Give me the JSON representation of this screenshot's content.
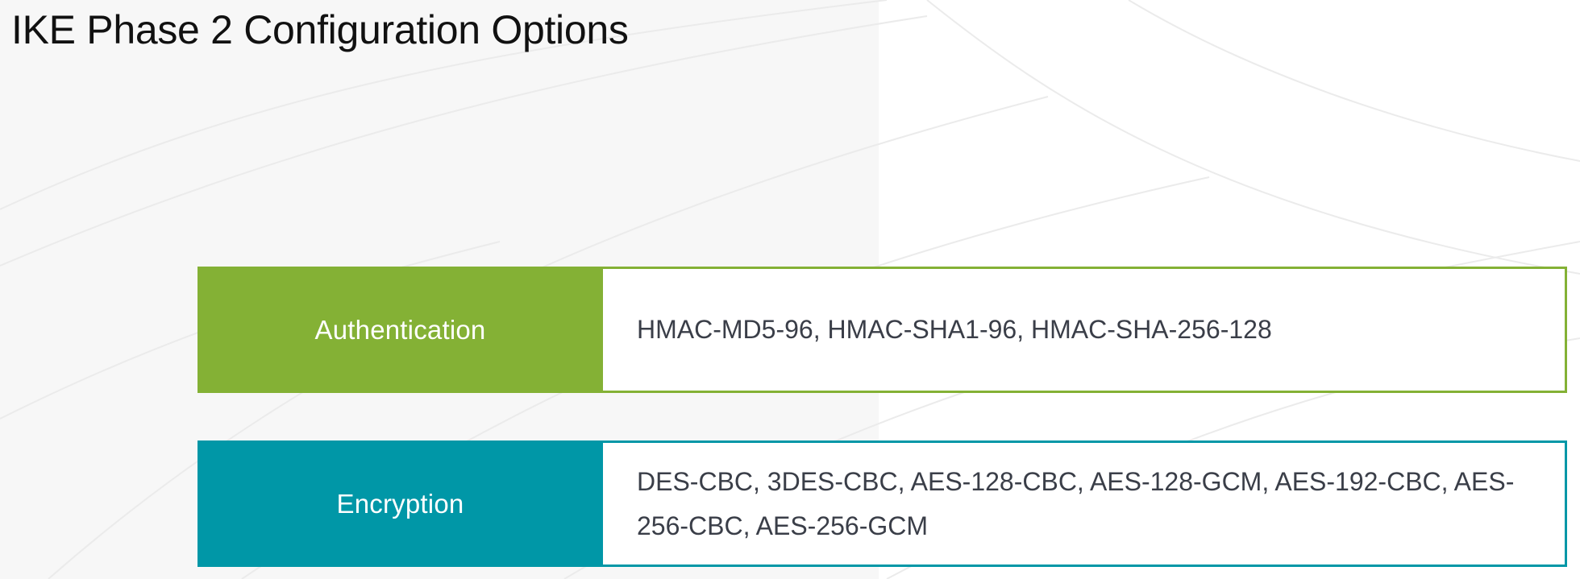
{
  "title": "IKE Phase 2 Configuration Options",
  "colors": {
    "authentication_accent": "#84b135",
    "encryption_accent": "#0097a7",
    "value_text": "#3a3e48",
    "title_text": "#111111"
  },
  "options": [
    {
      "label": "Authentication",
      "value": "HMAC-MD5-96, HMAC-SHA1-96, HMAC-SHA-256-128"
    },
    {
      "label": "Encryption",
      "value": "DES-CBC, 3DES-CBC, AES-128-CBC, AES-128-GCM, AES-192-CBC, AES-256-CBC, AES-256-GCM"
    }
  ]
}
